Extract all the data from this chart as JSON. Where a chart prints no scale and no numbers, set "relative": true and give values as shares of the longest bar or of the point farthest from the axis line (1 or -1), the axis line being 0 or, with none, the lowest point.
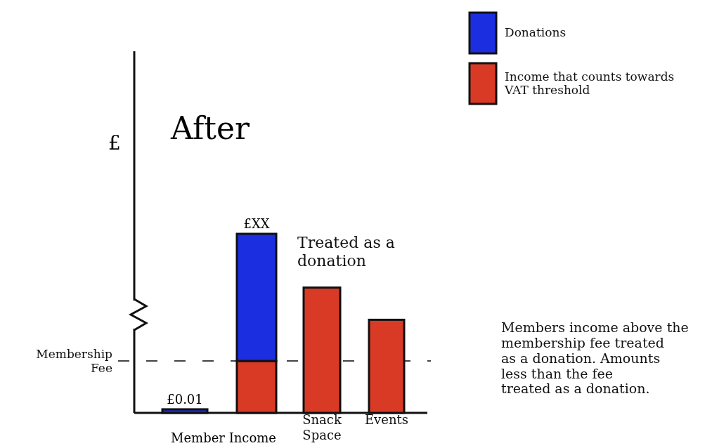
{
  "chart_data": {
    "type": "bar",
    "title": "After",
    "ylabel": "£",
    "xlabel": "Member Income",
    "categories": [
      null,
      null,
      "Snack Space",
      "Events"
    ],
    "stacked": true,
    "relative": true,
    "series": [
      {
        "name": "Income that counts towards VAT threshold",
        "color": "#d93a26",
        "values": [
          null,
          0.29,
          0.7,
          0.52
        ]
      },
      {
        "name": "Donations",
        "color": "#1b2fe0",
        "values": [
          0.02,
          0.71,
          null,
          null
        ]
      }
    ],
    "totals": [
      "£0.01",
      "£XX",
      null,
      null
    ],
    "ref_lines": [
      {
        "axis": "y",
        "value": 0.29,
        "label": "Membership Fee",
        "line_style": "dashed",
        "color": "#444444"
      }
    ],
    "annotations": [
      "Treated as a donation",
      "Members income above the membership fee treated as a donation. Amounts less than the fee treated as a donation."
    ],
    "legend": "top right"
  }
}
